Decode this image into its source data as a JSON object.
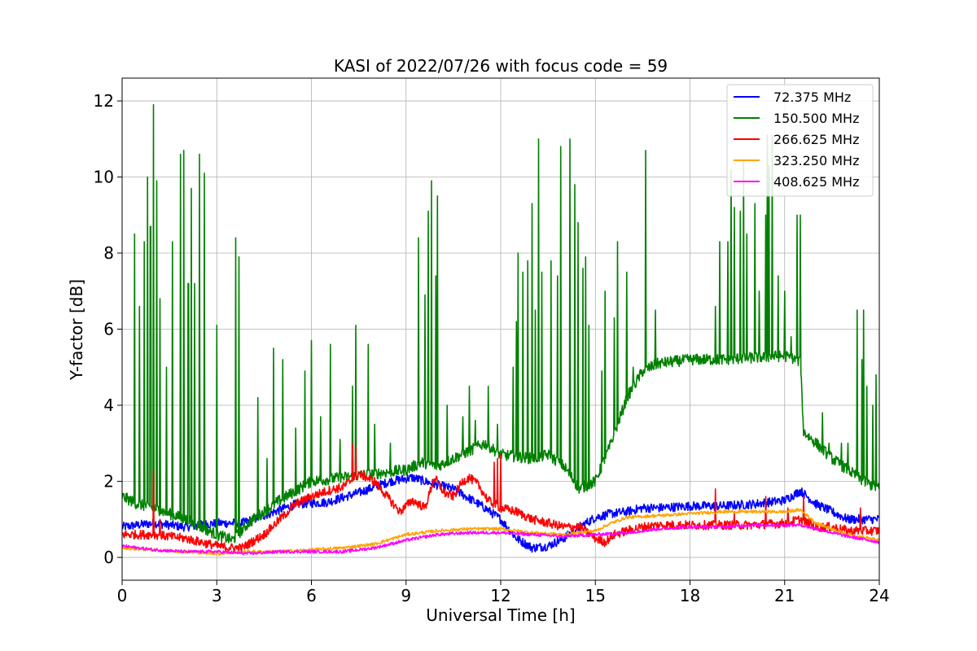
{
  "chart_data": {
    "type": "line",
    "title": "KASI of 2022/07/26 with focus code = 59",
    "xlabel": "Universal Time [h]",
    "ylabel": "Y-factor [dB]",
    "xlim": [
      0,
      24
    ],
    "ylim": [
      -0.6,
      12.6
    ],
    "xticks": [
      0,
      3,
      6,
      9,
      12,
      15,
      18,
      21,
      24
    ],
    "yticks": [
      0,
      2,
      4,
      6,
      8,
      10,
      12
    ],
    "grid": true,
    "legend_position": "top-right",
    "series": [
      {
        "name": "72.375 MHz",
        "legend_label": "  72.375 MHz",
        "color": "#0000ff",
        "noise": 0.12,
        "x": [
          0,
          1,
          2,
          3,
          3.8,
          4.5,
          5.5,
          6.5,
          7.5,
          8.5,
          9.2,
          10,
          10.5,
          11,
          11.5,
          12,
          12.5,
          13,
          13.5,
          14,
          14.5,
          15,
          15.5,
          16,
          16.5,
          17,
          18,
          19,
          20,
          21,
          21.5,
          22,
          22.5,
          23,
          24
        ],
        "y": [
          0.8,
          0.9,
          0.8,
          0.9,
          0.9,
          1.1,
          1.4,
          1.45,
          1.7,
          2.0,
          2.1,
          1.9,
          1.8,
          1.55,
          1.3,
          1.0,
          0.5,
          0.25,
          0.3,
          0.5,
          0.8,
          1.05,
          1.15,
          1.2,
          1.3,
          1.3,
          1.35,
          1.35,
          1.4,
          1.5,
          1.75,
          1.4,
          1.2,
          1.0,
          1.0
        ]
      },
      {
        "name": "150.500 MHz",
        "legend_label": "150.500 MHz",
        "color": "#008000",
        "noise": 0.15,
        "x": [
          0,
          0.5,
          1,
          2,
          2.5,
          3,
          3.5,
          4,
          5,
          6,
          7,
          8,
          9,
          9.5,
          10,
          11,
          11.5,
          12,
          13,
          13.5,
          14,
          14.5,
          15,
          15.5,
          16,
          16.5,
          17,
          18,
          19,
          20,
          21,
          21.5,
          21.6,
          22,
          22.5,
          23,
          23.5,
          24
        ],
        "y": [
          1.6,
          1.4,
          1.3,
          1.0,
          0.8,
          0.6,
          0.45,
          0.9,
          1.5,
          2.0,
          2.1,
          2.2,
          2.3,
          2.5,
          2.4,
          2.8,
          3.0,
          2.7,
          2.6,
          2.7,
          2.4,
          1.8,
          2.0,
          3.0,
          4.2,
          4.9,
          5.1,
          5.2,
          5.2,
          5.25,
          5.3,
          5.15,
          3.3,
          3.0,
          2.6,
          2.3,
          2.0,
          1.8
        ],
        "spikes": [
          [
            0.4,
            8.5
          ],
          [
            0.55,
            6.6
          ],
          [
            0.7,
            8.3
          ],
          [
            0.8,
            10.0
          ],
          [
            0.9,
            8.7
          ],
          [
            1.0,
            11.9
          ],
          [
            1.1,
            9.9
          ],
          [
            1.2,
            6.8
          ],
          [
            1.4,
            5.0
          ],
          [
            1.6,
            8.3
          ],
          [
            1.85,
            10.6
          ],
          [
            1.95,
            10.7
          ],
          [
            2.1,
            7.2
          ],
          [
            2.2,
            9.7
          ],
          [
            2.3,
            7.2
          ],
          [
            2.45,
            10.6
          ],
          [
            2.6,
            10.1
          ],
          [
            3.0,
            6.1
          ],
          [
            3.6,
            8.4
          ],
          [
            3.7,
            7.9
          ],
          [
            4.3,
            4.2
          ],
          [
            4.5,
            4.3
          ],
          [
            4.6,
            2.6
          ],
          [
            4.8,
            5.5
          ],
          [
            5.1,
            5.2
          ],
          [
            5.5,
            3.4
          ],
          [
            5.8,
            4.9
          ],
          [
            6.0,
            5.7
          ],
          [
            6.3,
            3.7
          ],
          [
            6.6,
            5.6
          ],
          [
            6.9,
            3.1
          ],
          [
            7.3,
            4.5
          ],
          [
            7.4,
            6.1
          ],
          [
            7.8,
            5.6
          ],
          [
            8.0,
            3.5
          ],
          [
            8.1,
            7.4
          ],
          [
            8.5,
            3.0
          ],
          [
            9.4,
            8.4
          ],
          [
            9.6,
            6.9
          ],
          [
            9.7,
            9.1
          ],
          [
            9.8,
            9.9
          ],
          [
            9.95,
            7.4
          ],
          [
            10.0,
            9.5
          ],
          [
            10.3,
            4.0
          ],
          [
            10.8,
            3.7
          ],
          [
            11.0,
            4.5
          ],
          [
            11.2,
            3.6
          ],
          [
            11.6,
            4.5
          ],
          [
            11.9,
            3.5
          ],
          [
            12.4,
            5.0
          ],
          [
            12.5,
            6.2
          ],
          [
            12.55,
            8.0
          ],
          [
            12.7,
            7.5
          ],
          [
            12.85,
            7.8
          ],
          [
            12.9,
            10.1
          ],
          [
            13.0,
            9.3
          ],
          [
            13.1,
            6.5
          ],
          [
            13.2,
            11.0
          ],
          [
            13.3,
            7.5
          ],
          [
            13.5,
            6.6
          ],
          [
            13.6,
            7.8
          ],
          [
            13.8,
            7.4
          ],
          [
            13.9,
            10.8
          ],
          [
            14.1,
            7.8
          ],
          [
            14.2,
            11.0
          ],
          [
            14.35,
            9.8
          ],
          [
            14.45,
            8.8
          ],
          [
            14.6,
            7.6
          ],
          [
            14.7,
            7.9
          ],
          [
            14.8,
            6.1
          ],
          [
            15.2,
            4.9
          ],
          [
            15.3,
            7.0
          ],
          [
            15.6,
            6.3
          ],
          [
            15.7,
            8.3
          ],
          [
            16.0,
            7.5
          ],
          [
            16.2,
            5.0
          ],
          [
            16.5,
            6.6
          ],
          [
            16.6,
            10.7
          ],
          [
            16.9,
            6.5
          ],
          [
            18.8,
            6.6
          ],
          [
            18.95,
            8.3
          ],
          [
            19.2,
            8.3
          ],
          [
            19.3,
            10.2
          ],
          [
            19.4,
            9.2
          ],
          [
            19.6,
            9.1
          ],
          [
            19.7,
            10.4
          ],
          [
            19.8,
            8.5
          ],
          [
            20.05,
            9.3
          ],
          [
            20.2,
            7.0
          ],
          [
            20.4,
            9.0
          ],
          [
            20.45,
            11.1
          ],
          [
            20.5,
            10.3
          ],
          [
            20.6,
            11.1
          ],
          [
            20.7,
            10.5
          ],
          [
            20.8,
            7.4
          ],
          [
            21.0,
            7.0
          ],
          [
            21.2,
            5.8
          ],
          [
            21.4,
            9.0
          ],
          [
            21.5,
            9.0
          ],
          [
            21.9,
            3.8
          ],
          [
            22.2,
            3.8
          ],
          [
            22.4,
            3.0
          ],
          [
            22.8,
            3.0
          ],
          [
            23.0,
            3.0
          ],
          [
            23.3,
            6.5
          ],
          [
            23.45,
            5.2
          ],
          [
            23.5,
            6.5
          ],
          [
            23.6,
            4.5
          ],
          [
            23.8,
            4.0
          ],
          [
            23.9,
            4.8
          ]
        ]
      },
      {
        "name": "266.625 MHz",
        "legend_label": "266.625 MHz",
        "color": "#ff0000",
        "noise": 0.12,
        "x": [
          0,
          1,
          2,
          2.5,
          3,
          3.5,
          3.8,
          4.5,
          5,
          5.5,
          6,
          6.5,
          7,
          7.5,
          8,
          8.5,
          8.8,
          9.2,
          9.6,
          9.9,
          10.2,
          10.5,
          10.8,
          11,
          11.3,
          11.6,
          12,
          12.5,
          13,
          13.5,
          14,
          14.5,
          15,
          15.3,
          15.6,
          16,
          16.5,
          17,
          18,
          19,
          20,
          21,
          21.5,
          22,
          22.5,
          23,
          24
        ],
        "y": [
          0.6,
          0.6,
          0.5,
          0.4,
          0.3,
          0.25,
          0.25,
          0.6,
          1.0,
          1.4,
          1.6,
          1.75,
          1.85,
          2.2,
          2.0,
          1.5,
          1.2,
          1.5,
          1.3,
          2.1,
          1.7,
          1.6,
          2.0,
          2.1,
          1.9,
          1.5,
          1.3,
          1.2,
          1.0,
          0.9,
          0.8,
          0.8,
          0.5,
          0.4,
          0.6,
          0.7,
          0.8,
          0.85,
          0.85,
          0.85,
          0.85,
          0.9,
          1.0,
          0.8,
          0.8,
          0.7,
          0.7
        ],
        "spikes": [
          [
            1.0,
            2.3
          ],
          [
            1.2,
            1.0
          ],
          [
            7.3,
            3.0
          ],
          [
            7.4,
            2.9
          ],
          [
            11.8,
            2.5
          ],
          [
            11.9,
            2.6
          ],
          [
            12.0,
            2.7
          ],
          [
            18.8,
            1.8
          ],
          [
            19.4,
            1.2
          ],
          [
            20.4,
            1.6
          ],
          [
            21.1,
            1.3
          ],
          [
            21.6,
            1.6
          ],
          [
            23.4,
            1.3
          ]
        ]
      },
      {
        "name": "323.250 MHz",
        "legend_label": "323.250 MHz",
        "color": "#ffa500",
        "noise": 0.04,
        "x": [
          0,
          1,
          2,
          3,
          4,
          5,
          6,
          7,
          8,
          9,
          10,
          11,
          12,
          13,
          14,
          15,
          15.5,
          16,
          17,
          18,
          19,
          20,
          21,
          21.5,
          22,
          23,
          24
        ],
        "y": [
          0.25,
          0.2,
          0.15,
          0.1,
          0.15,
          0.15,
          0.2,
          0.25,
          0.35,
          0.6,
          0.7,
          0.75,
          0.75,
          0.65,
          0.6,
          0.7,
          0.9,
          1.05,
          1.1,
          1.15,
          1.2,
          1.2,
          1.2,
          1.25,
          0.9,
          0.6,
          0.45
        ]
      },
      {
        "name": "408.625 MHz",
        "legend_label": "408.625 MHz",
        "color": "#ff00ff",
        "noise": 0.04,
        "x": [
          0,
          1,
          2,
          3,
          4,
          5,
          6,
          7,
          8,
          9,
          10,
          11,
          12,
          13,
          14,
          15,
          16,
          17,
          18,
          19,
          20,
          21,
          21.5,
          22,
          23,
          24
        ],
        "y": [
          0.3,
          0.2,
          0.15,
          0.15,
          0.1,
          0.15,
          0.15,
          0.15,
          0.25,
          0.45,
          0.6,
          0.65,
          0.65,
          0.6,
          0.55,
          0.6,
          0.65,
          0.75,
          0.8,
          0.8,
          0.85,
          0.85,
          0.85,
          0.75,
          0.55,
          0.4
        ]
      }
    ]
  }
}
